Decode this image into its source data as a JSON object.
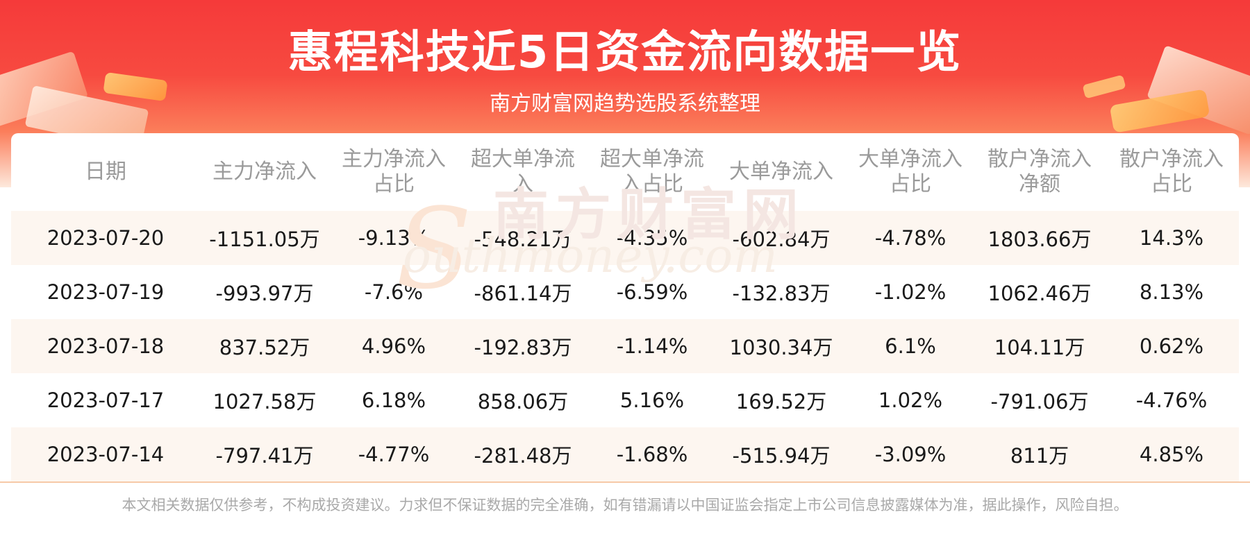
{
  "header": {
    "title": "惠程科技近5日资金流向数据一览",
    "subtitle": "南方财富网趋势选股系统整理"
  },
  "watermark": {
    "cn": "南方财富网",
    "en": "outhmoney.com",
    "s": "S"
  },
  "table": {
    "columns": [
      "日期",
      "主力净流入",
      "主力净流入占比",
      "超大单净流入",
      "超大单净流入占比",
      "大单净流入",
      "大单净流入占比",
      "散户净流入净额",
      "散户净流入占比"
    ],
    "rows": [
      [
        "2023-07-20",
        "-1151.05万",
        "-9.13%",
        "-548.21万",
        "-4.35%",
        "-602.84万",
        "-4.78%",
        "1803.66万",
        "14.3%"
      ],
      [
        "2023-07-19",
        "-993.97万",
        "-7.6%",
        "-861.14万",
        "-6.59%",
        "-132.83万",
        "-1.02%",
        "1062.46万",
        "8.13%"
      ],
      [
        "2023-07-18",
        "837.52万",
        "4.96%",
        "-192.83万",
        "-1.14%",
        "1030.34万",
        "6.1%",
        "104.11万",
        "0.62%"
      ],
      [
        "2023-07-17",
        "1027.58万",
        "6.18%",
        "858.06万",
        "5.16%",
        "169.52万",
        "1.02%",
        "-791.06万",
        "-4.76%"
      ],
      [
        "2023-07-14",
        "-797.41万",
        "-4.77%",
        "-281.48万",
        "-1.68%",
        "-515.94万",
        "-3.09%",
        "811万",
        "4.85%"
      ]
    ]
  },
  "footer": {
    "disclaimer": "本文相关数据仅供参考，不构成投资建议。力求但不保证数据的完全准确，如有错漏请以中国证监会指定上市公司信息披露媒体为准，据此操作，风险自担。"
  },
  "colors": {
    "banner_red": "#f53a3a",
    "row_alt": "#fdf6f0",
    "header_text": "#9a9a9a"
  }
}
